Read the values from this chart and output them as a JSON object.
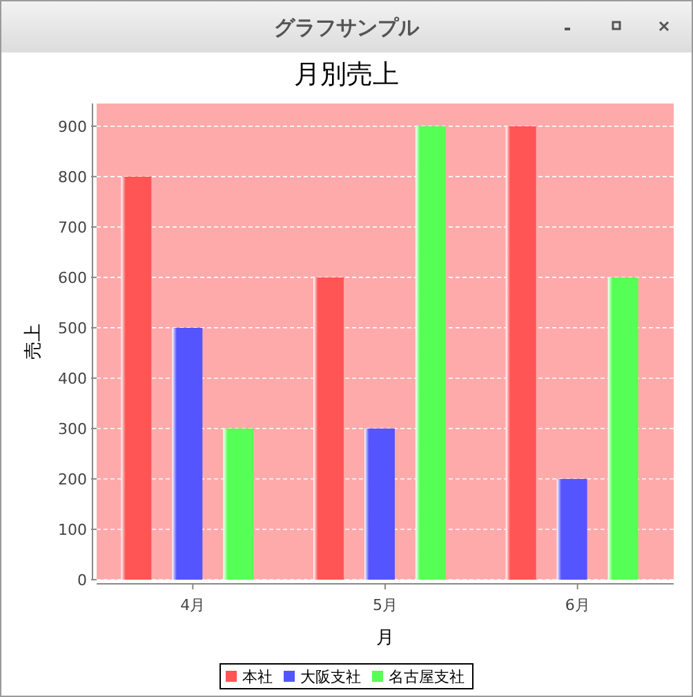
{
  "chart_data": {
    "type": "bar",
    "title": "月別売上",
    "xlabel": "月",
    "ylabel": "売上",
    "annotations": [
      "グラフサンプル"
    ],
    "categories": [
      "4月",
      "5月",
      "6月"
    ],
    "series": [
      {
        "name": "本社",
        "color": "#ff5555",
        "values": [
          800,
          600,
          900
        ]
      },
      {
        "name": "大阪支社",
        "color": "#5555ff",
        "values": [
          500,
          300,
          200
        ]
      },
      {
        "name": "名古屋支社",
        "color": "#55ff55",
        "values": [
          300,
          900,
          600
        ]
      }
    ],
    "ylim": [
      0,
      945
    ],
    "yticks": [
      0,
      100,
      200,
      300,
      400,
      500,
      600,
      700,
      800,
      900
    ],
    "grid": "y",
    "legend": "bottom"
  }
}
